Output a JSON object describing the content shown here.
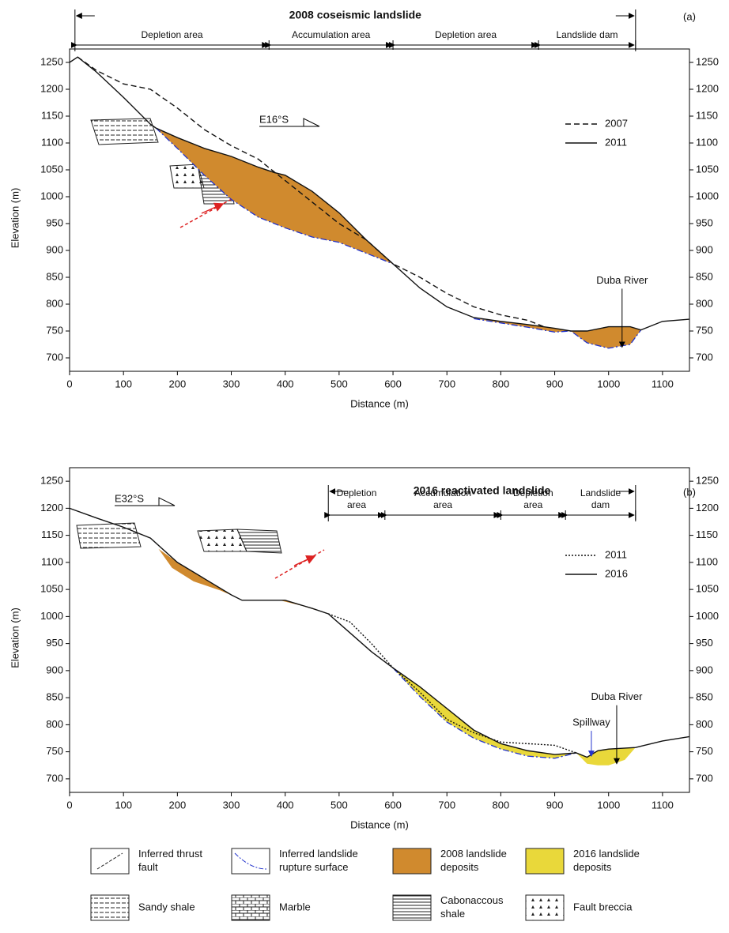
{
  "chart_data": [
    {
      "type": "line",
      "title": "2008 coseismic landslide",
      "panel": "(a)",
      "orientation": "E16°S",
      "x_label": "Distance (m)",
      "y_label": "Elevation (m)",
      "xlim": [
        0,
        1150
      ],
      "ylim": [
        675,
        1275
      ],
      "xticks": [
        0,
        100,
        200,
        300,
        400,
        500,
        600,
        700,
        800,
        900,
        1000,
        1100
      ],
      "yticks": [
        700,
        750,
        800,
        850,
        900,
        950,
        1000,
        1050,
        1100,
        1150,
        1200,
        1250
      ],
      "legend": "right",
      "zones": [
        {
          "label": [
            "Depletion area"
          ],
          "start": 10,
          "end": 370
        },
        {
          "label": [
            "Accumulation  area"
          ],
          "start": 370,
          "end": 600
        },
        {
          "label": [
            "Depletion area"
          ],
          "start": 600,
          "end": 870
        },
        {
          "label": [
            "Landslide dam"
          ],
          "start": 870,
          "end": 1050
        }
      ],
      "series": [
        {
          "name": "2007",
          "style": "dashed",
          "color": "#111",
          "x": [
            15,
            50,
            100,
            150,
            200,
            250,
            300,
            350,
            400,
            450,
            500,
            550,
            600,
            650,
            700,
            750,
            800,
            850,
            880
          ],
          "values": [
            1260,
            1235,
            1210,
            1200,
            1165,
            1125,
            1095,
            1070,
            1030,
            990,
            950,
            920,
            875,
            850,
            820,
            795,
            780,
            770,
            758
          ]
        },
        {
          "name": "2011",
          "style": "solid",
          "color": "#111",
          "x": [
            0,
            15,
            50,
            100,
            150,
            160,
            200,
            250,
            300,
            350,
            380,
            400,
            450,
            500,
            550,
            600,
            650,
            700,
            750,
            800,
            850,
            900,
            930,
            960,
            1000,
            1040,
            1060,
            1100,
            1150
          ],
          "values": [
            1250,
            1260,
            1232,
            1185,
            1135,
            1128,
            1110,
            1090,
            1075,
            1055,
            1045,
            1040,
            1010,
            970,
            920,
            875,
            830,
            795,
            775,
            768,
            762,
            755,
            750,
            750,
            758,
            758,
            752,
            768,
            772
          ]
        }
      ],
      "rupture_surfaces": [
        {
          "fill": "#d08a2e",
          "outline": true,
          "x": [
            160,
            200,
            250,
            300,
            350,
            400,
            450,
            500,
            550,
            600
          ],
          "values": [
            1128,
            1090,
            1040,
            995,
            962,
            942,
            925,
            915,
            895,
            875
          ]
        },
        {
          "fill": "#d08a2e",
          "outline": true,
          "x": [
            750,
            800,
            850,
            900,
            930,
            960,
            1000,
            1040,
            1060
          ],
          "values": [
            773,
            765,
            757,
            748,
            750,
            728,
            718,
            725,
            752
          ]
        }
      ],
      "annotations": [
        {
          "text": "Duba River",
          "x": 1025,
          "y": 720
        }
      ]
    },
    {
      "type": "line",
      "title": "2016 reactivated landslide",
      "panel": "(b)",
      "orientation": "E32°S",
      "x_label": "Distance (m)",
      "y_label": "Elevation (m)",
      "xlim": [
        0,
        1150
      ],
      "ylim": [
        675,
        1275
      ],
      "xticks": [
        0,
        100,
        200,
        300,
        400,
        500,
        600,
        700,
        800,
        900,
        1000,
        1100
      ],
      "yticks": [
        700,
        750,
        800,
        850,
        900,
        950,
        1000,
        1050,
        1100,
        1150,
        1200,
        1250
      ],
      "legend": "right",
      "zones": [
        {
          "label": [
            "Depletion",
            "area"
          ],
          "start": 480,
          "end": 585
        },
        {
          "label": [
            "Accumulation",
            "area"
          ],
          "start": 585,
          "end": 800
        },
        {
          "label": [
            "Depletion",
            "area"
          ],
          "start": 800,
          "end": 920
        },
        {
          "label": [
            "Landslide",
            "dam"
          ],
          "start": 920,
          "end": 1050
        }
      ],
      "series": [
        {
          "name": "2011",
          "style": "dotted",
          "color": "#111",
          "x": [
            480,
            520,
            560,
            600,
            650,
            700,
            750,
            800,
            850,
            900,
            940
          ],
          "values": [
            1005,
            990,
            950,
            905,
            860,
            810,
            785,
            768,
            765,
            762,
            748
          ]
        },
        {
          "name": "2016",
          "style": "solid",
          "color": "#111",
          "x": [
            0,
            50,
            100,
            150,
            200,
            250,
            300,
            320,
            400,
            450,
            480,
            520,
            560,
            600,
            650,
            700,
            750,
            800,
            850,
            900,
            940,
            960,
            980,
            1000,
            1050,
            1100,
            1150
          ],
          "values": [
            1200,
            1182,
            1165,
            1145,
            1100,
            1070,
            1040,
            1030,
            1030,
            1015,
            1005,
            970,
            935,
            905,
            870,
            830,
            790,
            765,
            752,
            745,
            748,
            740,
            752,
            755,
            758,
            770,
            778
          ]
        }
      ],
      "rupture_surfaces": [
        {
          "fill": "#d08a2e",
          "outline": false,
          "x": [
            165,
            190,
            230,
            280,
            310
          ],
          "values": [
            1125,
            1090,
            1065,
            1048,
            1035
          ]
        },
        {
          "fill": "#d08a2e",
          "outline": false,
          "x": [
            390,
            430,
            480
          ],
          "values": [
            1030,
            1020,
            1005
          ]
        },
        {
          "fill": "#e9d83a",
          "outline": true,
          "x": [
            600,
            650,
            700,
            750,
            800,
            850,
            900,
            940
          ],
          "values": [
            905,
            852,
            805,
            775,
            755,
            742,
            738,
            748
          ]
        },
        {
          "fill": "#e9d83a",
          "outline": false,
          "x": [
            940,
            960,
            980,
            1000,
            1030,
            1050
          ],
          "values": [
            748,
            728,
            725,
            725,
            735,
            758
          ]
        }
      ],
      "annotations": [
        {
          "text": "Spillway",
          "x": 968,
          "y": 742
        },
        {
          "text": "Duba River",
          "x": 1015,
          "y": 728
        }
      ]
    }
  ],
  "legend": {
    "items": [
      {
        "label": [
          "Inferred thrust",
          "fault"
        ],
        "kind": "thrust"
      },
      {
        "label": [
          "Inferred landslide",
          "rupture surface"
        ],
        "kind": "rupture"
      },
      {
        "label": [
          "2008 landslide",
          "deposits"
        ],
        "kind": "fill",
        "color": "#d08a2e"
      },
      {
        "label": [
          "2016 landslide",
          "deposits"
        ],
        "kind": "fill",
        "color": "#e9d83a"
      },
      {
        "label": [
          "Sandy shale"
        ],
        "kind": "sandy"
      },
      {
        "label": [
          "Marble"
        ],
        "kind": "marble"
      },
      {
        "label": [
          "Cabonaccous",
          "shale"
        ],
        "kind": "carbon"
      },
      {
        "label": [
          "Fault breccia"
        ],
        "kind": "breccia"
      }
    ]
  }
}
